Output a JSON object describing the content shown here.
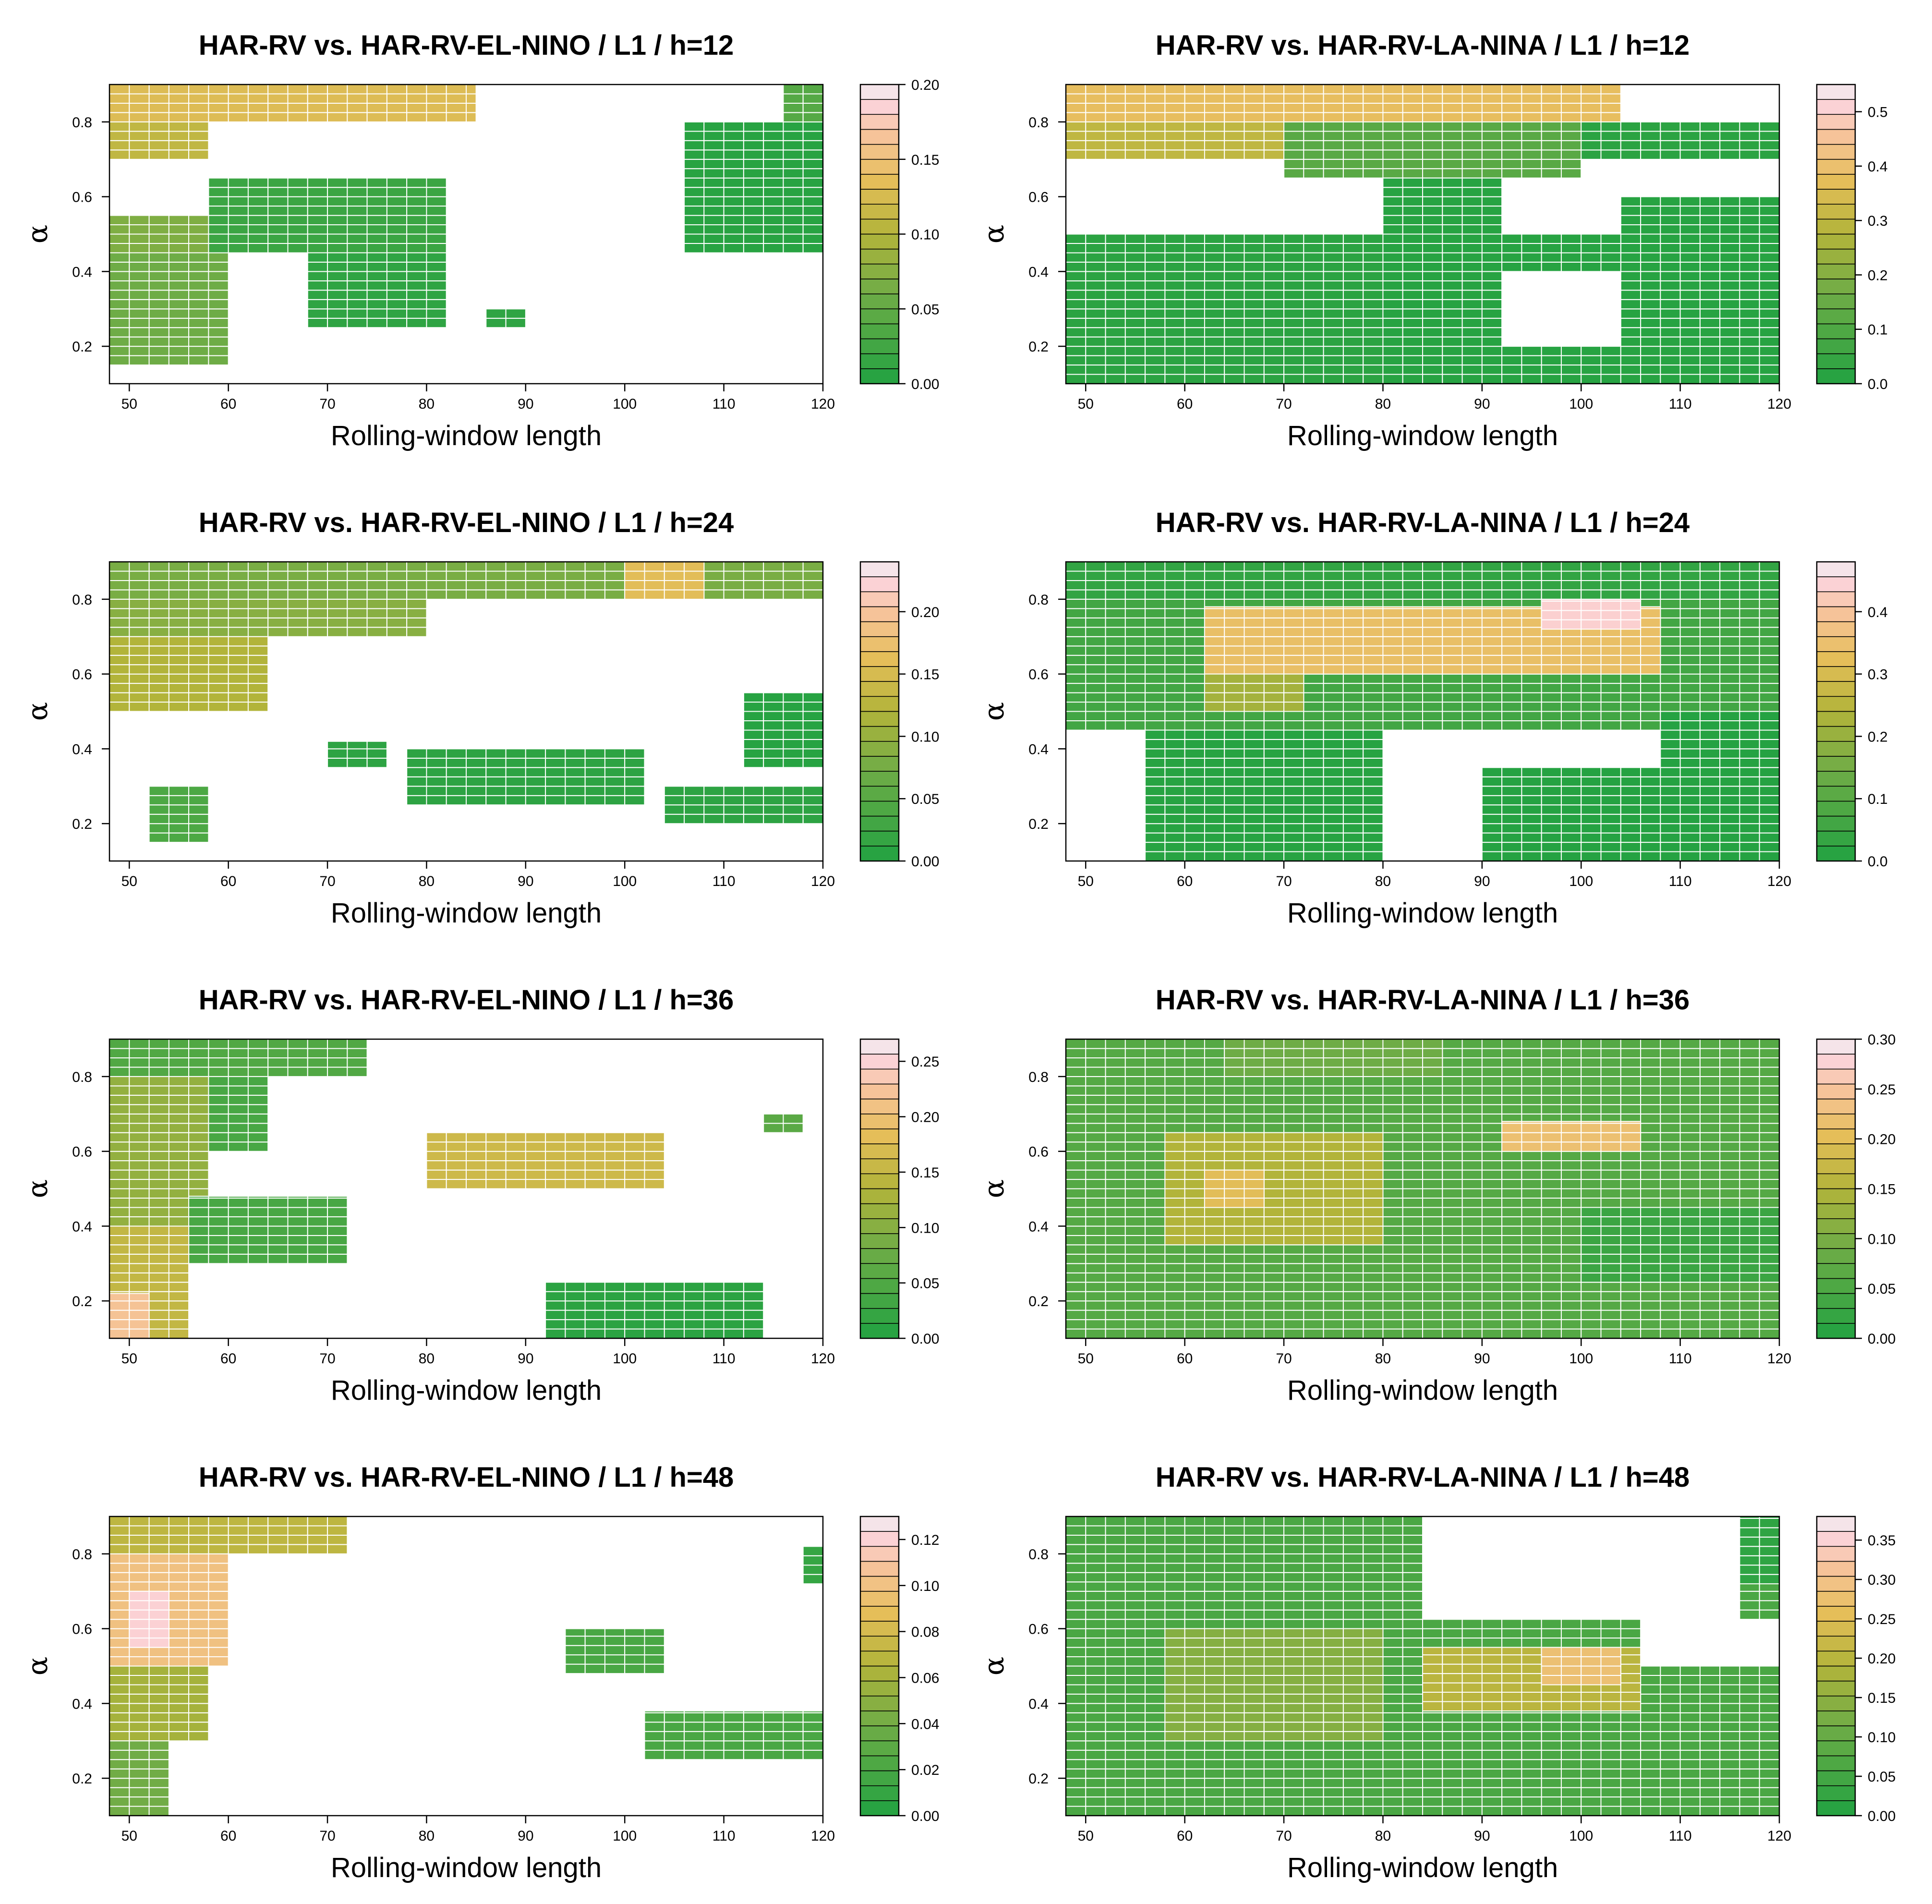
{
  "chart_data": [
    {
      "id": "el-12",
      "type": "heatmap",
      "title": "HAR-RV vs. HAR-RV-EL-NINO / L1 / h=12",
      "xlabel": "Rolling-window length",
      "ylabel": "α",
      "x_ticks": [
        "50",
        "60",
        "70",
        "80",
        "90",
        "100",
        "110",
        "120"
      ],
      "y_ticks": [
        "0.2",
        "0.4",
        "0.6",
        "0.8"
      ],
      "xlim": [
        48,
        120
      ],
      "ylim": [
        0.1,
        0.9
      ],
      "color_range": [
        0,
        0.2
      ],
      "color_ticks": [
        "0.00",
        "0.05",
        "0.10",
        "0.15",
        "0.20"
      ],
      "regions": [
        {
          "x": [
            48,
            85
          ],
          "y": [
            0.8,
            0.9
          ],
          "v": 0.13
        },
        {
          "x": [
            48,
            58
          ],
          "y": [
            0.7,
            0.8
          ],
          "v": 0.11
        },
        {
          "x": [
            48,
            58
          ],
          "y": [
            0.45,
            0.55
          ],
          "v": 0.07
        },
        {
          "x": [
            48,
            60
          ],
          "y": [
            0.15,
            0.45
          ],
          "v": 0.06
        },
        {
          "x": [
            58,
            82
          ],
          "y": [
            0.45,
            0.65
          ],
          "v": 0.02
        },
        {
          "x": [
            68,
            82
          ],
          "y": [
            0.25,
            0.45
          ],
          "v": 0.01
        },
        {
          "x": [
            86,
            90
          ],
          "y": [
            0.25,
            0.3
          ],
          "v": 0.01
        },
        {
          "x": [
            106,
            120
          ],
          "y": [
            0.45,
            0.8
          ],
          "v": 0.005
        },
        {
          "x": [
            116,
            120
          ],
          "y": [
            0.8,
            0.9
          ],
          "v": 0.04
        }
      ]
    },
    {
      "id": "la-12",
      "type": "heatmap",
      "title": "HAR-RV vs. HAR-RV-LA-NINA / L1 / h=12",
      "xlabel": "Rolling-window length",
      "ylabel": "α",
      "x_ticks": [
        "50",
        "60",
        "70",
        "80",
        "90",
        "100",
        "110",
        "120"
      ],
      "y_ticks": [
        "0.2",
        "0.4",
        "0.6",
        "0.8"
      ],
      "xlim": [
        48,
        120
      ],
      "ylim": [
        0.1,
        0.9
      ],
      "color_range": [
        0,
        0.55
      ],
      "color_ticks": [
        "0.0",
        "0.1",
        "0.2",
        "0.3",
        "0.4",
        "0.5"
      ],
      "regions": [
        {
          "x": [
            48,
            104
          ],
          "y": [
            0.8,
            0.9
          ],
          "v": 0.38
        },
        {
          "x": [
            48,
            70
          ],
          "y": [
            0.7,
            0.8
          ],
          "v": 0.3
        },
        {
          "x": [
            70,
            100
          ],
          "y": [
            0.65,
            0.8
          ],
          "v": 0.12
        },
        {
          "x": [
            100,
            120
          ],
          "y": [
            0.7,
            0.8
          ],
          "v": 0.02
        },
        {
          "x": [
            48,
            80
          ],
          "y": [
            0.1,
            0.5
          ],
          "v": 0.02
        },
        {
          "x": [
            80,
            92
          ],
          "y": [
            0.1,
            0.65
          ],
          "v": 0.01
        },
        {
          "x": [
            92,
            104
          ],
          "y": [
            0.1,
            0.2
          ],
          "v": 0.01
        },
        {
          "x": [
            104,
            120
          ],
          "y": [
            0.1,
            0.6
          ],
          "v": 0.01
        },
        {
          "x": [
            92,
            104
          ],
          "y": [
            0.4,
            0.5
          ],
          "v": 0.01
        }
      ]
    },
    {
      "id": "el-24",
      "type": "heatmap",
      "title": "HAR-RV vs. HAR-RV-EL-NINO / L1 / h=24",
      "xlabel": "Rolling-window length",
      "ylabel": "α",
      "x_ticks": [
        "50",
        "60",
        "70",
        "80",
        "90",
        "100",
        "110",
        "120"
      ],
      "y_ticks": [
        "0.2",
        "0.4",
        "0.6",
        "0.8"
      ],
      "xlim": [
        48,
        120
      ],
      "ylim": [
        0.1,
        0.9
      ],
      "color_range": [
        0,
        0.24
      ],
      "color_ticks": [
        "0.00",
        "0.05",
        "0.10",
        "0.15",
        "0.20"
      ],
      "regions": [
        {
          "x": [
            48,
            120
          ],
          "y": [
            0.8,
            0.9
          ],
          "v": 0.08
        },
        {
          "x": [
            100,
            108
          ],
          "y": [
            0.8,
            0.9
          ],
          "v": 0.16
        },
        {
          "x": [
            48,
            80
          ],
          "y": [
            0.7,
            0.8
          ],
          "v": 0.09
        },
        {
          "x": [
            48,
            64
          ],
          "y": [
            0.5,
            0.7
          ],
          "v": 0.12
        },
        {
          "x": [
            78,
            102
          ],
          "y": [
            0.25,
            0.4
          ],
          "v": 0.01
        },
        {
          "x": [
            104,
            120
          ],
          "y": [
            0.2,
            0.3
          ],
          "v": 0.01
        },
        {
          "x": [
            112,
            120
          ],
          "y": [
            0.35,
            0.55
          ],
          "v": 0.005
        },
        {
          "x": [
            52,
            58
          ],
          "y": [
            0.15,
            0.3
          ],
          "v": 0.04
        },
        {
          "x": [
            70,
            76
          ],
          "y": [
            0.35,
            0.42
          ],
          "v": 0.01
        }
      ]
    },
    {
      "id": "la-24",
      "type": "heatmap",
      "title": "HAR-RV vs. HAR-RV-LA-NINA / L1 / h=24",
      "xlabel": "Rolling-window length",
      "ylabel": "α",
      "x_ticks": [
        "50",
        "60",
        "70",
        "80",
        "90",
        "100",
        "110",
        "120"
      ],
      "y_ticks": [
        "0.2",
        "0.4",
        "0.6",
        "0.8"
      ],
      "xlim": [
        48,
        120
      ],
      "ylim": [
        0.1,
        0.9
      ],
      "color_range": [
        0,
        0.48
      ],
      "color_ticks": [
        "0.0",
        "0.1",
        "0.2",
        "0.3",
        "0.4"
      ],
      "regions": [
        {
          "x": [
            48,
            120
          ],
          "y": [
            0.8,
            0.9
          ],
          "v": 0.03
        },
        {
          "x": [
            48,
            120
          ],
          "y": [
            0.45,
            0.8
          ],
          "v": 0.06
        },
        {
          "x": [
            62,
            108
          ],
          "y": [
            0.6,
            0.78
          ],
          "v": 0.34
        },
        {
          "x": [
            96,
            106
          ],
          "y": [
            0.72,
            0.8
          ],
          "v": 0.44
        },
        {
          "x": [
            62,
            72
          ],
          "y": [
            0.5,
            0.6
          ],
          "v": 0.22
        },
        {
          "x": [
            56,
            80
          ],
          "y": [
            0.1,
            0.45
          ],
          "v": 0.01
        },
        {
          "x": [
            90,
            120
          ],
          "y": [
            0.1,
            0.35
          ],
          "v": 0.005
        },
        {
          "x": [
            108,
            120
          ],
          "y": [
            0.35,
            0.5
          ],
          "v": 0.005
        }
      ]
    },
    {
      "id": "el-36",
      "type": "heatmap",
      "title": "HAR-RV vs. HAR-RV-EL-NINO / L1 / h=36",
      "xlabel": "Rolling-window length",
      "ylabel": "α",
      "x_ticks": [
        "50",
        "60",
        "70",
        "80",
        "90",
        "100",
        "110",
        "120"
      ],
      "y_ticks": [
        "0.2",
        "0.4",
        "0.6",
        "0.8"
      ],
      "xlim": [
        48,
        120
      ],
      "ylim": [
        0.1,
        0.9
      ],
      "color_range": [
        0,
        0.27
      ],
      "color_ticks": [
        "0.00",
        "0.05",
        "0.10",
        "0.15",
        "0.20",
        "0.25"
      ],
      "regions": [
        {
          "x": [
            48,
            74
          ],
          "y": [
            0.8,
            0.9
          ],
          "v": 0.05
        },
        {
          "x": [
            48,
            58
          ],
          "y": [
            0.4,
            0.8
          ],
          "v": 0.11
        },
        {
          "x": [
            58,
            64
          ],
          "y": [
            0.6,
            0.8
          ],
          "v": 0.04
        },
        {
          "x": [
            56,
            72
          ],
          "y": [
            0.3,
            0.48
          ],
          "v": 0.04
        },
        {
          "x": [
            48,
            56
          ],
          "y": [
            0.1,
            0.4
          ],
          "v": 0.15
        },
        {
          "x": [
            48,
            52
          ],
          "y": [
            0.1,
            0.22
          ],
          "v": 0.22
        },
        {
          "x": [
            92,
            114
          ],
          "y": [
            0.1,
            0.25
          ],
          "v": 0.01
        },
        {
          "x": [
            80,
            104
          ],
          "y": [
            0.5,
            0.65
          ],
          "v": 0.16
        },
        {
          "x": [
            114,
            118
          ],
          "y": [
            0.65,
            0.7
          ],
          "v": 0.06
        }
      ]
    },
    {
      "id": "la-36",
      "type": "heatmap",
      "title": "HAR-RV vs. HAR-RV-LA-NINA / L1 / h=36",
      "xlabel": "Rolling-window length",
      "ylabel": "α",
      "x_ticks": [
        "50",
        "60",
        "70",
        "80",
        "90",
        "100",
        "110",
        "120"
      ],
      "y_ticks": [
        "0.2",
        "0.4",
        "0.6",
        "0.8"
      ],
      "xlim": [
        48,
        120
      ],
      "ylim": [
        0.1,
        0.9
      ],
      "color_range": [
        0,
        0.3
      ],
      "color_ticks": [
        "0.00",
        "0.05",
        "0.10",
        "0.15",
        "0.20",
        "0.25",
        "0.30"
      ],
      "regions": [
        {
          "x": [
            48,
            120
          ],
          "y": [
            0.1,
            0.9
          ],
          "v": 0.06
        },
        {
          "x": [
            58,
            80
          ],
          "y": [
            0.35,
            0.65
          ],
          "v": 0.15
        },
        {
          "x": [
            62,
            68
          ],
          "y": [
            0.45,
            0.55
          ],
          "v": 0.2
        },
        {
          "x": [
            92,
            106
          ],
          "y": [
            0.6,
            0.68
          ],
          "v": 0.22
        },
        {
          "x": [
            100,
            120
          ],
          "y": [
            0.25,
            0.45
          ],
          "v": 0.03
        },
        {
          "x": [
            64,
            86
          ],
          "y": [
            0.8,
            0.9
          ],
          "v": 0.09
        }
      ]
    },
    {
      "id": "el-48",
      "type": "heatmap",
      "title": "HAR-RV vs. HAR-RV-EL-NINO / L1 / h=48",
      "xlabel": "Rolling-window length",
      "ylabel": "α",
      "x_ticks": [
        "50",
        "60",
        "70",
        "80",
        "90",
        "100",
        "110",
        "120"
      ],
      "y_ticks": [
        "0.2",
        "0.4",
        "0.6",
        "0.8"
      ],
      "xlim": [
        48,
        120
      ],
      "ylim": [
        0.1,
        0.9
      ],
      "color_range": [
        0,
        0.13
      ],
      "color_ticks": [
        "0.00",
        "0.02",
        "0.04",
        "0.06",
        "0.08",
        "0.10",
        "0.12"
      ],
      "regions": [
        {
          "x": [
            48,
            72
          ],
          "y": [
            0.8,
            0.9
          ],
          "v": 0.07
        },
        {
          "x": [
            48,
            60
          ],
          "y": [
            0.5,
            0.8
          ],
          "v": 0.1
        },
        {
          "x": [
            50,
            54
          ],
          "y": [
            0.55,
            0.7
          ],
          "v": 0.12
        },
        {
          "x": [
            48,
            58
          ],
          "y": [
            0.3,
            0.5
          ],
          "v": 0.06
        },
        {
          "x": [
            48,
            54
          ],
          "y": [
            0.1,
            0.3
          ],
          "v": 0.04
        },
        {
          "x": [
            102,
            120
          ],
          "y": [
            0.25,
            0.38
          ],
          "v": 0.02
        },
        {
          "x": [
            94,
            104
          ],
          "y": [
            0.48,
            0.6
          ],
          "v": 0.02
        },
        {
          "x": [
            118,
            120
          ],
          "y": [
            0.72,
            0.82
          ],
          "v": 0.01
        }
      ]
    },
    {
      "id": "la-48",
      "type": "heatmap",
      "title": "HAR-RV vs. HAR-RV-LA-NINA / L1 / h=48",
      "xlabel": "Rolling-window length",
      "ylabel": "α",
      "x_ticks": [
        "50",
        "60",
        "70",
        "80",
        "90",
        "100",
        "110",
        "120"
      ],
      "y_ticks": [
        "0.2",
        "0.4",
        "0.6",
        "0.8"
      ],
      "xlim": [
        48,
        120
      ],
      "ylim": [
        0.1,
        0.9
      ],
      "color_range": [
        0,
        0.38
      ],
      "color_ticks": [
        "0.00",
        "0.05",
        "0.10",
        "0.15",
        "0.20",
        "0.25",
        "0.30",
        "0.35"
      ],
      "regions": [
        {
          "x": [
            48,
            120
          ],
          "y": [
            0.1,
            0.9
          ],
          "v": 0.06
        },
        {
          "x": [
            58,
            80
          ],
          "y": [
            0.3,
            0.6
          ],
          "v": 0.14
        },
        {
          "x": [
            84,
            106
          ],
          "y": [
            0.38,
            0.55
          ],
          "v": 0.2
        },
        {
          "x": [
            96,
            104
          ],
          "y": [
            0.45,
            0.55
          ],
          "v": 0.28
        },
        {
          "x": [
            90,
            120
          ],
          "y": [
            0.72,
            0.9
          ],
          "v": 0.02
        }
      ],
      "holes": [
        {
          "x": [
            84,
            116
          ],
          "y": [
            0.62,
            0.9
          ]
        },
        {
          "x": [
            106,
            120
          ],
          "y": [
            0.5,
            0.62
          ]
        }
      ]
    }
  ]
}
